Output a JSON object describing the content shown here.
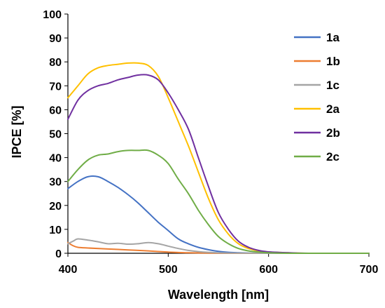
{
  "chart_data": {
    "type": "line",
    "title": "",
    "xlabel": "Wavelength [nm]",
    "ylabel": "IPCE [%]",
    "xlim": [
      400,
      700
    ],
    "ylim": [
      0,
      100
    ],
    "xticks": [
      "400",
      "500",
      "600",
      "700"
    ],
    "yticks": [
      "0",
      "10",
      "20",
      "30",
      "40",
      "50",
      "60",
      "70",
      "80",
      "90",
      "100"
    ],
    "grid": false,
    "legend_position": "right",
    "series": [
      {
        "name": "1a",
        "color": "#4472C4",
        "x": [
          400,
          410,
          420,
          430,
          440,
          450,
          460,
          470,
          480,
          490,
          500,
          510,
          520,
          530,
          540,
          550,
          560,
          570,
          580,
          600,
          620,
          640,
          660,
          680,
          700
        ],
        "y": [
          27,
          30,
          32,
          32,
          30,
          27.5,
          24.5,
          21,
          17,
          13,
          9.5,
          6,
          4,
          2.5,
          1.5,
          0.8,
          0.4,
          0.2,
          0.1,
          0,
          0,
          0,
          0,
          0,
          0
        ]
      },
      {
        "name": "1b",
        "color": "#ED7D31",
        "x": [
          400,
          405,
          410,
          420,
          440,
          460,
          480,
          500,
          520,
          540,
          560,
          600,
          700
        ],
        "y": [
          4.5,
          3.2,
          2.5,
          2.2,
          1.8,
          1.4,
          1.0,
          0.5,
          0.2,
          0.1,
          0,
          0,
          0
        ]
      },
      {
        "name": "1c",
        "color": "#A5A5A5",
        "x": [
          400,
          405,
          410,
          420,
          430,
          440,
          450,
          460,
          470,
          480,
          490,
          500,
          510,
          520,
          530,
          540,
          560,
          600,
          700
        ],
        "y": [
          4,
          5,
          6,
          5.5,
          4.8,
          4.0,
          4.2,
          3.8,
          4.0,
          4.5,
          4.0,
          3.0,
          2.0,
          1.2,
          0.7,
          0.4,
          0.1,
          0,
          0
        ]
      },
      {
        "name": "2a",
        "color": "#FFC000",
        "x": [
          400,
          410,
          420,
          430,
          440,
          450,
          460,
          470,
          480,
          490,
          500,
          510,
          520,
          530,
          540,
          550,
          560,
          570,
          580,
          590,
          600,
          620,
          640,
          660,
          680,
          700
        ],
        "y": [
          65,
          70,
          75,
          77.5,
          78.5,
          79,
          79.5,
          79.5,
          78.5,
          74,
          65,
          55,
          45,
          34,
          23,
          14,
          8,
          4,
          2,
          1,
          0.5,
          0.2,
          0,
          0,
          0,
          0
        ]
      },
      {
        "name": "2b",
        "color": "#7030A0",
        "x": [
          400,
          410,
          420,
          430,
          440,
          450,
          460,
          470,
          480,
          490,
          500,
          510,
          520,
          530,
          540,
          550,
          560,
          570,
          580,
          590,
          600,
          620,
          640,
          660,
          680,
          700
        ],
        "y": [
          56,
          64,
          68,
          70,
          71,
          72.5,
          73.5,
          74.5,
          74.5,
          72.5,
          67,
          60,
          52,
          40,
          28,
          17,
          10,
          5,
          2.5,
          1.2,
          0.6,
          0.2,
          0,
          0,
          0,
          0
        ]
      },
      {
        "name": "2c",
        "color": "#70AD47",
        "x": [
          400,
          410,
          420,
          430,
          440,
          450,
          460,
          470,
          480,
          490,
          500,
          510,
          520,
          530,
          540,
          550,
          560,
          570,
          580,
          590,
          600,
          620,
          640,
          660,
          680,
          700
        ],
        "y": [
          30,
          35,
          39,
          41,
          41.5,
          42.5,
          43,
          43,
          43,
          41,
          37.5,
          31,
          25,
          18,
          12,
          7,
          4,
          2,
          1,
          0.5,
          0.2,
          0,
          0,
          0,
          0,
          0
        ]
      }
    ]
  }
}
